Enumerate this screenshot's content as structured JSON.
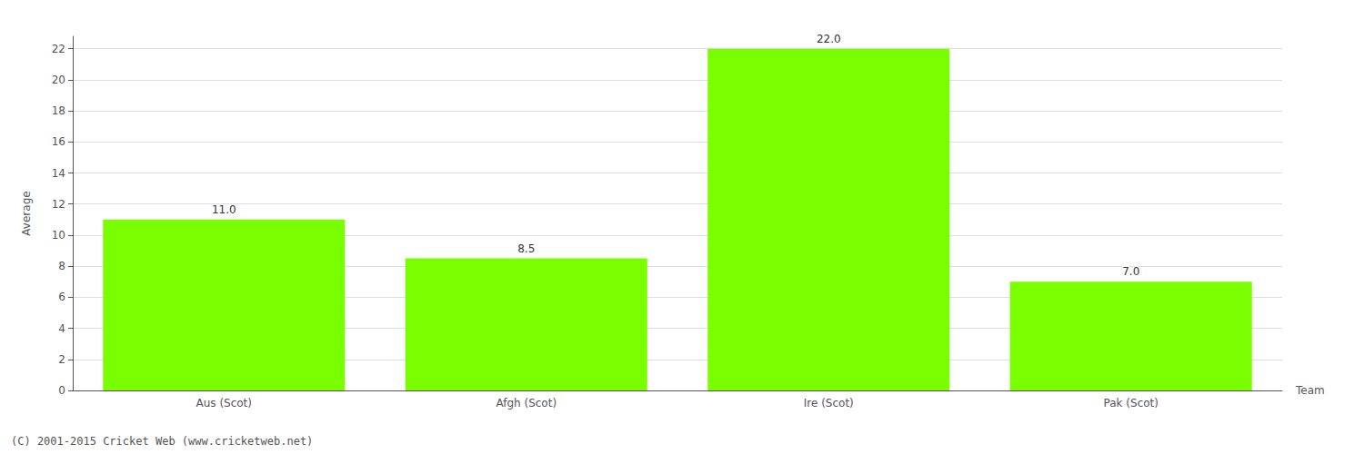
{
  "chart_data": {
    "type": "bar",
    "categories": [
      "Aus (Scot)",
      "Afgh (Scot)",
      "Ire (Scot)",
      "Pak (Scot)"
    ],
    "values": [
      11.0,
      8.5,
      22.0,
      7.0
    ],
    "value_labels": [
      "11.0",
      "8.5",
      "22.0",
      "7.0"
    ],
    "data_labels": true,
    "color": "#7aff00",
    "xlabel": "Team",
    "ylabel": "Average",
    "ylim": [
      0,
      22.8
    ],
    "yticks": [
      0,
      2,
      4,
      6,
      8,
      10,
      12,
      14,
      16,
      18,
      20,
      22
    ],
    "grid": true,
    "annotations": [
      "(C) 2001-2015 Cricket Web (www.cricketweb.net)"
    ]
  }
}
